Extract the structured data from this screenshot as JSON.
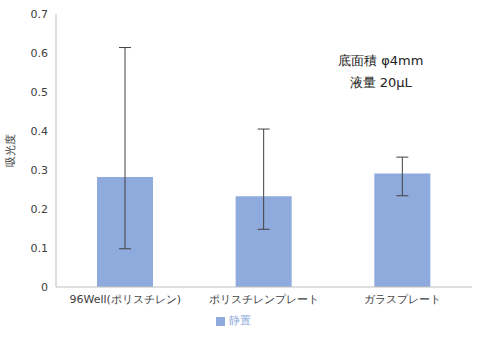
{
  "chart_data": {
    "type": "bar",
    "categories": [
      "96Well(ポリスチレン)",
      "ポリスチレンプレート",
      "ガラスプレート"
    ],
    "series": [
      {
        "name": "静置",
        "color": "#8faadc",
        "values": [
          0.282,
          0.233,
          0.291
        ],
        "error_minus": [
          0.184,
          0.085,
          0.057
        ],
        "error_plus": [
          0.332,
          0.172,
          0.042
        ]
      }
    ],
    "ylim": [
      0,
      0.7
    ],
    "yticks": [
      0,
      0.1,
      0.2,
      0.3,
      0.4,
      0.5,
      0.6,
      0.7
    ],
    "y_label": "吸光度",
    "annotations": [
      "底面積 φ4mm",
      "液量 20μL"
    ],
    "legend": "bottom",
    "grid": false
  }
}
